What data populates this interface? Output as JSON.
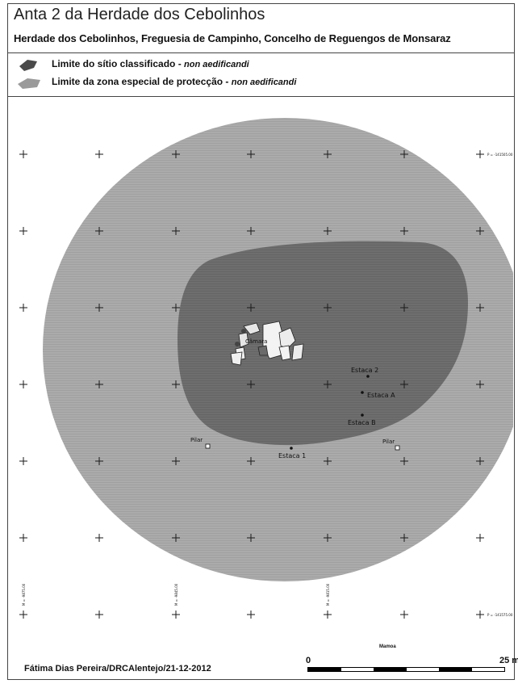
{
  "header": {
    "title": "Anta 2 da Herdade dos Cebolinhos",
    "subtitle": "Herdade dos Cebolinhos, Freguesia de Campinho, Concelho de Reguengos de Monsaraz"
  },
  "legend": [
    {
      "label": "Limite do sítio classificado",
      "sep": " - ",
      "note": "non aedificandi",
      "color": "#4a4a4a"
    },
    {
      "label": "Limite da zona especial de protecção",
      "sep": " - ",
      "note": "non aedificandi",
      "color": "#9a9a9a"
    }
  ],
  "map": {
    "outer_zone_color": "#a7a7a7",
    "inner_zone_color": "#6b6b6b",
    "labels": {
      "camara": "Câmara",
      "estaca2": "Estaca 2",
      "estacaA": "Estaca A",
      "estacaB": "Estaca B",
      "estaca1": "Estaca 1",
      "pilar_left": "Pilar",
      "pilar_right": "Pilar"
    },
    "coords": {
      "top_right": "P = -141505.00",
      "bottom_right": "P = -141575.00",
      "bottom_1": "M = -9875.00",
      "bottom_2": "M = -9845.00",
      "bottom_3": "M = -9815.00"
    }
  },
  "scale": {
    "name": "Mamoa",
    "start": "0",
    "end": "25 m"
  },
  "footer": {
    "credit": "Fátima Dias Pereira/DRCAlentejo/21-12-2012"
  }
}
